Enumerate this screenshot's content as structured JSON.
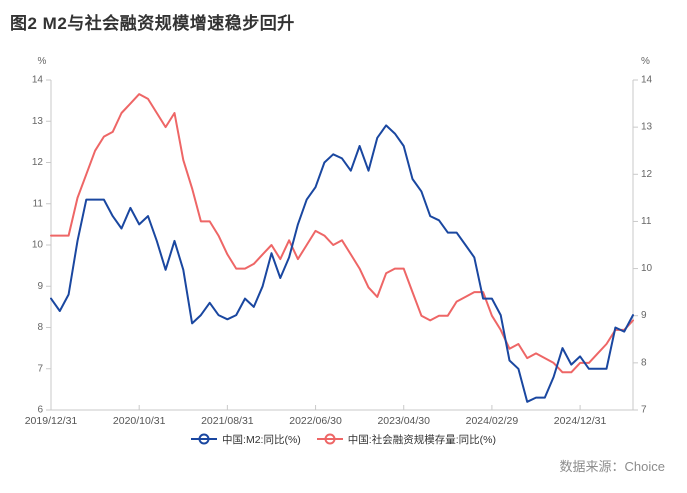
{
  "page": {
    "title": "图2  M2与社会融资规模增速稳步回升",
    "source": "数据来源：Choice"
  },
  "colors": {
    "m2_line": "#1a47a0",
    "tsf_line": "#ee6666",
    "axis_line": "#c9c9c9",
    "tick_text": "#666666",
    "date_text": "#555555",
    "title_text": "#333333",
    "source_text": "#8c8c8c"
  },
  "legend": {
    "items": [
      {
        "label": "中国:M2:同比(%)",
        "color": "#1a47a0"
      },
      {
        "label": "中国:社会融资规模存量:同比(%)",
        "color": "#ee6666"
      }
    ]
  },
  "chart_data": {
    "type": "line",
    "title": "图2 M2与社会融资规模增速稳步回升",
    "grid": false,
    "legend_position": "bottom",
    "unit": "%",
    "x": [
      "2019-12",
      "2020-01",
      "2020-02",
      "2020-03",
      "2020-04",
      "2020-05",
      "2020-06",
      "2020-07",
      "2020-08",
      "2020-09",
      "2020-10",
      "2020-11",
      "2020-12",
      "2021-01",
      "2021-02",
      "2021-03",
      "2021-04",
      "2021-05",
      "2021-06",
      "2021-07",
      "2021-08",
      "2021-09",
      "2021-10",
      "2021-11",
      "2021-12",
      "2022-01",
      "2022-02",
      "2022-03",
      "2022-04",
      "2022-05",
      "2022-06",
      "2022-07",
      "2022-08",
      "2022-09",
      "2022-10",
      "2022-11",
      "2022-12",
      "2023-01",
      "2023-02",
      "2023-03",
      "2023-04",
      "2023-05",
      "2023-06",
      "2023-07",
      "2023-08",
      "2023-09",
      "2023-10",
      "2023-11",
      "2023-12",
      "2024-01",
      "2024-02",
      "2024-03",
      "2024-04",
      "2024-05",
      "2024-06",
      "2024-07",
      "2024-08",
      "2024-09",
      "2024-10",
      "2024-11",
      "2024-12",
      "2025-01",
      "2025-02",
      "2025-03",
      "2025-04",
      "2025-05",
      "2025-06"
    ],
    "x_tick_indices": [
      0,
      10,
      20,
      30,
      40,
      50,
      60
    ],
    "x_tick_labels": [
      "2019/12/31",
      "2020/10/31",
      "2021/08/31",
      "2022/06/30",
      "2023/04/30",
      "2024/02/29",
      "2024/12/31"
    ],
    "left_axis": {
      "unit": "%",
      "min": 6,
      "max": 14,
      "ticks": [
        6,
        7,
        8,
        9,
        10,
        11,
        12,
        13,
        14
      ]
    },
    "right_axis": {
      "unit": "%",
      "min": 7,
      "max": 14,
      "ticks": [
        7,
        8,
        9,
        10,
        11,
        12,
        13,
        14
      ]
    },
    "series": [
      {
        "name": "中国:M2:同比(%)",
        "axis": "left",
        "color": "#1a47a0",
        "values": [
          8.7,
          8.4,
          8.8,
          10.1,
          11.1,
          11.1,
          11.1,
          10.7,
          10.4,
          10.9,
          10.5,
          10.7,
          10.1,
          9.4,
          10.1,
          9.4,
          8.1,
          8.3,
          8.6,
          8.3,
          8.2,
          8.3,
          8.7,
          8.5,
          9.0,
          9.8,
          9.2,
          9.7,
          10.5,
          11.1,
          11.4,
          12.0,
          12.2,
          12.1,
          11.8,
          12.4,
          11.8,
          12.6,
          12.9,
          12.7,
          12.4,
          11.6,
          11.3,
          10.7,
          10.6,
          10.3,
          10.3,
          10.0,
          9.7,
          8.7,
          8.7,
          8.3,
          7.2,
          7.0,
          6.2,
          6.3,
          6.3,
          6.8,
          7.5,
          7.1,
          7.3,
          7.0,
          7.0,
          7.0,
          8.0,
          7.9,
          8.3
        ]
      },
      {
        "name": "中国:社会融资规模存量:同比(%)",
        "axis": "right",
        "color": "#ee6666",
        "values": [
          10.7,
          10.7,
          10.7,
          11.5,
          12.0,
          12.5,
          12.8,
          12.9,
          13.3,
          13.5,
          13.7,
          13.6,
          13.3,
          13.0,
          13.3,
          12.3,
          11.7,
          11.0,
          11.0,
          10.7,
          10.3,
          10.0,
          10.0,
          10.1,
          10.3,
          10.5,
          10.2,
          10.6,
          10.2,
          10.5,
          10.8,
          10.7,
          10.5,
          10.6,
          10.3,
          10.0,
          9.6,
          9.4,
          9.9,
          10.0,
          10.0,
          9.5,
          9.0,
          8.9,
          9.0,
          9.0,
          9.3,
          9.4,
          9.5,
          9.5,
          9.0,
          8.7,
          8.3,
          8.4,
          8.1,
          8.2,
          8.1,
          8.0,
          7.8,
          7.8,
          8.0,
          8.0,
          8.2,
          8.4,
          8.7,
          8.7,
          8.9
        ]
      }
    ]
  }
}
